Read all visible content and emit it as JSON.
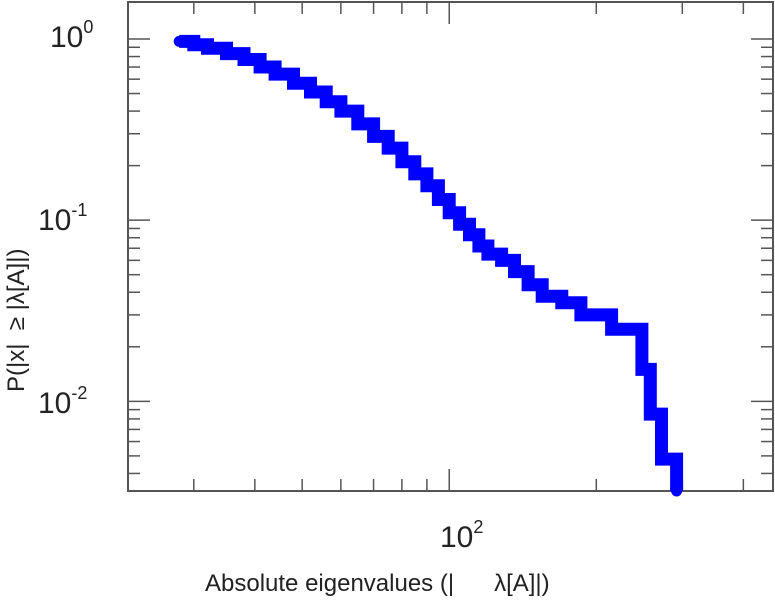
{
  "chart_data": {
    "type": "line",
    "style": "step",
    "title": "",
    "xlabel": "Absolute eigenvalues (|      λ[A]|)",
    "ylabel": "P(|x|  ≥ |λ[A]|)",
    "xscale": "log",
    "yscale": "log",
    "xlim": [
      22,
      460
    ],
    "ylim": [
      0.0032,
      1.6
    ],
    "grid": false,
    "x_ticks": [
      {
        "base": "10",
        "exp": "2",
        "value": 100
      }
    ],
    "y_ticks": [
      {
        "base": "10",
        "exp": "0",
        "value": 1
      },
      {
        "base": "10",
        "exp": "-1",
        "value": 0.1
      },
      {
        "base": "10",
        "exp": "-2",
        "value": 0.01
      }
    ],
    "series": [
      {
        "color": "#0000ff",
        "x": [
          28,
          30,
          32,
          35,
          38,
          41,
          44,
          48,
          52,
          56,
          60,
          65,
          70,
          75,
          80,
          85,
          90,
          95,
          100,
          105,
          110,
          115,
          120,
          128,
          136,
          145,
          155,
          170,
          186,
          215,
          248,
          258,
          272,
          290,
          292
        ],
        "y": [
          0.97,
          0.93,
          0.89,
          0.83,
          0.77,
          0.7,
          0.64,
          0.57,
          0.51,
          0.45,
          0.4,
          0.34,
          0.29,
          0.25,
          0.21,
          0.18,
          0.155,
          0.13,
          0.11,
          0.095,
          0.083,
          0.072,
          0.065,
          0.06,
          0.052,
          0.044,
          0.038,
          0.035,
          0.03,
          0.025,
          0.015,
          0.0085,
          0.0048,
          0.0048,
          0.0032
        ]
      }
    ]
  }
}
